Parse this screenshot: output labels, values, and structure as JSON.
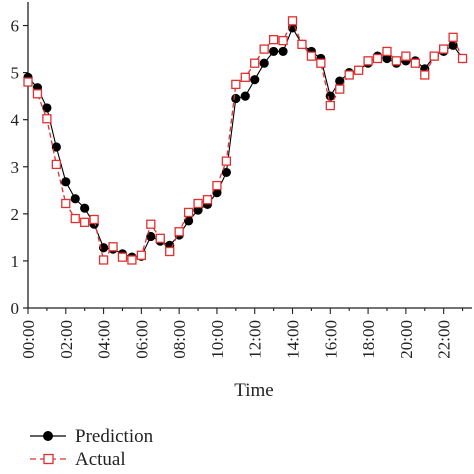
{
  "chart_data": {
    "type": "line",
    "xlabel": "Time",
    "ylabel": "",
    "xlim": [
      0,
      23.5
    ],
    "ylim": [
      0,
      6.5
    ],
    "x_ticks": [
      "00:00",
      "02:00",
      "04:00",
      "06:00",
      "08:00",
      "10:00",
      "12:00",
      "14:00",
      "16:00",
      "18:00",
      "20:00",
      "22:00"
    ],
    "y_ticks": [
      "0",
      "1",
      "2",
      "3",
      "4",
      "5",
      "6"
    ],
    "x": [
      0,
      0.5,
      1,
      1.5,
      2,
      2.5,
      3,
      3.5,
      4,
      4.5,
      5,
      5.5,
      6,
      6.5,
      7,
      7.5,
      8,
      8.5,
      9,
      9.5,
      10,
      10.5,
      11,
      11.5,
      12,
      12.5,
      13,
      13.5,
      14,
      14.5,
      15,
      15.5,
      16,
      16.5,
      17,
      17.5,
      18,
      18.5,
      19,
      19.5,
      20,
      20.5,
      21,
      21.5,
      22,
      22.5,
      23
    ],
    "series": [
      {
        "name": "Prediction",
        "color": "#000000",
        "marker": "filled-circle",
        "line": "solid",
        "values": [
          4.9,
          4.68,
          4.25,
          3.42,
          2.68,
          2.32,
          2.12,
          1.78,
          1.28,
          1.25,
          1.15,
          1.08,
          1.1,
          1.52,
          1.42,
          1.33,
          1.55,
          1.85,
          2.08,
          2.2,
          2.45,
          2.88,
          4.45,
          4.5,
          4.85,
          5.2,
          5.45,
          5.45,
          5.95,
          5.6,
          5.45,
          5.3,
          4.5,
          4.82,
          5.0,
          5.05,
          5.2,
          5.35,
          5.3,
          5.2,
          5.25,
          5.25,
          5.08,
          5.35,
          5.45,
          5.58,
          5.3
        ]
      },
      {
        "name": "Actual",
        "color": "#e03030",
        "marker": "open-square",
        "line": "dashed",
        "values": [
          4.8,
          4.55,
          4.02,
          3.05,
          2.22,
          1.9,
          1.82,
          1.88,
          1.02,
          1.3,
          1.08,
          1.02,
          1.12,
          1.78,
          1.48,
          1.2,
          1.62,
          2.03,
          2.22,
          2.3,
          2.6,
          3.12,
          4.75,
          4.9,
          5.2,
          5.5,
          5.7,
          5.68,
          6.1,
          5.6,
          5.35,
          5.2,
          4.3,
          4.65,
          4.95,
          5.05,
          5.25,
          5.3,
          5.45,
          5.25,
          5.35,
          5.2,
          4.95,
          5.35,
          5.5,
          5.75,
          5.3
        ]
      }
    ],
    "grid": false,
    "legend_position": "bottom-left"
  }
}
